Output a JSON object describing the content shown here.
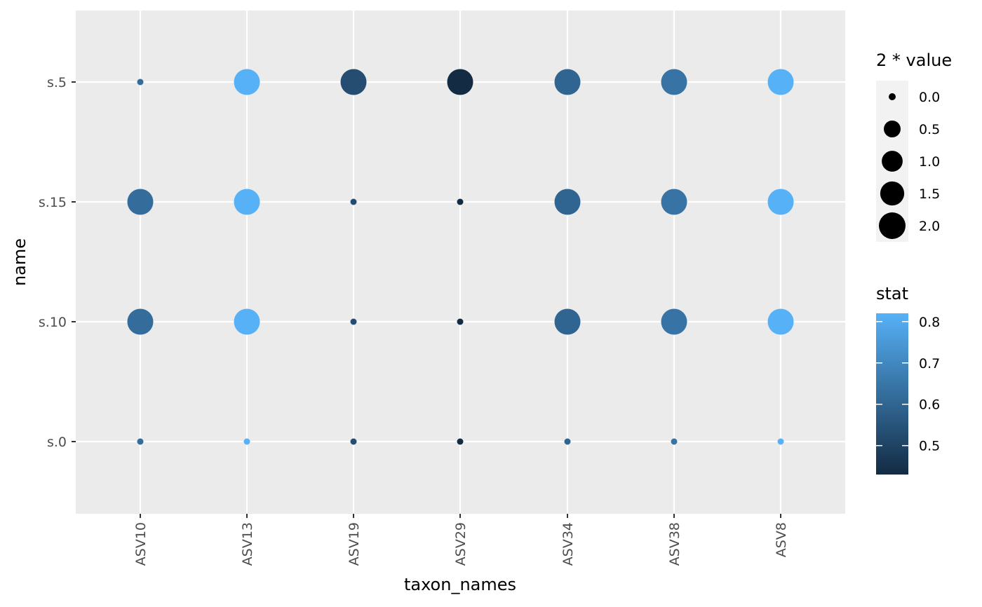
{
  "chart_data": {
    "type": "scatter",
    "xlabel": "taxon_names",
    "ylabel": "name",
    "x_categories": [
      "ASV10",
      "ASV13",
      "ASV19",
      "ASV29",
      "ASV34",
      "ASV38",
      "ASV8"
    ],
    "y_categories": [
      "s.0",
      "s.10",
      "s.15",
      "s.5"
    ],
    "points": [
      {
        "taxon": "ASV10",
        "name": "s.0",
        "size": 0.0,
        "stat": 0.62
      },
      {
        "taxon": "ASV10",
        "name": "s.10",
        "size": 2.0,
        "stat": 0.62
      },
      {
        "taxon": "ASV10",
        "name": "s.15",
        "size": 2.0,
        "stat": 0.62
      },
      {
        "taxon": "ASV10",
        "name": "s.5",
        "size": 0.0,
        "stat": 0.62
      },
      {
        "taxon": "ASV13",
        "name": "s.0",
        "size": 0.0,
        "stat": 0.82
      },
      {
        "taxon": "ASV13",
        "name": "s.10",
        "size": 2.0,
        "stat": 0.82
      },
      {
        "taxon": "ASV13",
        "name": "s.15",
        "size": 2.0,
        "stat": 0.82
      },
      {
        "taxon": "ASV13",
        "name": "s.5",
        "size": 2.0,
        "stat": 0.82
      },
      {
        "taxon": "ASV19",
        "name": "s.0",
        "size": 0.0,
        "stat": 0.53
      },
      {
        "taxon": "ASV19",
        "name": "s.10",
        "size": 0.0,
        "stat": 0.53
      },
      {
        "taxon": "ASV19",
        "name": "s.15",
        "size": 0.0,
        "stat": 0.53
      },
      {
        "taxon": "ASV19",
        "name": "s.5",
        "size": 2.0,
        "stat": 0.53
      },
      {
        "taxon": "ASV29",
        "name": "s.0",
        "size": 0.0,
        "stat": 0.43
      },
      {
        "taxon": "ASV29",
        "name": "s.10",
        "size": 0.0,
        "stat": 0.43
      },
      {
        "taxon": "ASV29",
        "name": "s.15",
        "size": 0.0,
        "stat": 0.43
      },
      {
        "taxon": "ASV29",
        "name": "s.5",
        "size": 2.0,
        "stat": 0.43
      },
      {
        "taxon": "ASV34",
        "name": "s.0",
        "size": 0.0,
        "stat": 0.6
      },
      {
        "taxon": "ASV34",
        "name": "s.10",
        "size": 2.0,
        "stat": 0.6
      },
      {
        "taxon": "ASV34",
        "name": "s.15",
        "size": 2.0,
        "stat": 0.6
      },
      {
        "taxon": "ASV34",
        "name": "s.5",
        "size": 2.0,
        "stat": 0.6
      },
      {
        "taxon": "ASV38",
        "name": "s.0",
        "size": 0.0,
        "stat": 0.64
      },
      {
        "taxon": "ASV38",
        "name": "s.10",
        "size": 2.0,
        "stat": 0.64
      },
      {
        "taxon": "ASV38",
        "name": "s.15",
        "size": 2.0,
        "stat": 0.64
      },
      {
        "taxon": "ASV38",
        "name": "s.5",
        "size": 2.0,
        "stat": 0.64
      },
      {
        "taxon": "ASV8",
        "name": "s.0",
        "size": 0.0,
        "stat": 0.82
      },
      {
        "taxon": "ASV8",
        "name": "s.10",
        "size": 2.0,
        "stat": 0.82
      },
      {
        "taxon": "ASV8",
        "name": "s.15",
        "size": 2.0,
        "stat": 0.82
      },
      {
        "taxon": "ASV8",
        "name": "s.5",
        "size": 2.0,
        "stat": 0.82
      }
    ],
    "size_legend": {
      "title": "2 * value",
      "breaks": [
        0.0,
        0.5,
        1.0,
        1.5,
        2.0
      ],
      "labels": [
        "0.0",
        "0.5",
        "1.0",
        "1.5",
        "2.0"
      ]
    },
    "color_legend": {
      "title": "stat",
      "range": [
        0.43,
        0.82
      ],
      "breaks": [
        0.5,
        0.6,
        0.7,
        0.8
      ],
      "labels": [
        "0.5",
        "0.6",
        "0.7",
        "0.8"
      ],
      "low_color": "#132B43",
      "high_color": "#56B1F7"
    },
    "panel_background": "#EBEBEB",
    "grid_color": "#FFFFFF",
    "grid": true,
    "legend_position": "right"
  }
}
